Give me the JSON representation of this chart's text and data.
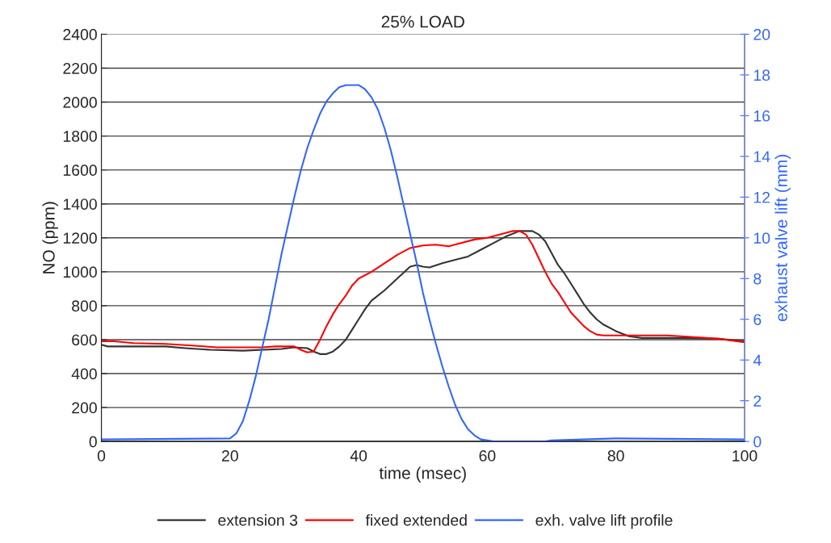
{
  "chart_data": {
    "type": "line",
    "title": "25% LOAD",
    "xlabel": "time (msec)",
    "ylabel": "NO (ppm)",
    "y2label": "exhaust valve lift (mm)",
    "xlim": [
      0,
      100
    ],
    "xticks": [
      0,
      20,
      40,
      60,
      80,
      100
    ],
    "ylim": [
      0,
      2400
    ],
    "yticks": [
      0,
      200,
      400,
      600,
      800,
      1000,
      1200,
      1400,
      1600,
      1800,
      2000,
      2200,
      2400
    ],
    "y2lim": [
      0,
      20
    ],
    "y2ticks": [
      0,
      2,
      4,
      6,
      8,
      10,
      12,
      14,
      16,
      18,
      20
    ],
    "grid": "y",
    "legend": "bottom",
    "marker": "none",
    "line_style": "solid",
    "series": [
      {
        "name": "extension 3",
        "color": "#333333",
        "x": [
          0,
          1,
          10,
          13,
          17,
          22,
          28,
          30,
          32,
          33,
          34,
          35,
          36,
          37,
          38,
          39,
          40,
          41,
          42,
          44,
          46,
          48,
          49,
          50,
          51,
          53,
          55,
          57,
          59,
          61,
          63,
          65,
          67,
          68,
          69,
          70,
          71,
          72,
          73,
          74,
          75,
          76,
          77,
          78,
          80,
          82,
          84,
          90,
          96,
          100
        ],
        "values": [
          570,
          560,
          560,
          550,
          540,
          535,
          545,
          555,
          550,
          530,
          515,
          515,
          530,
          560,
          600,
          660,
          720,
          780,
          830,
          890,
          960,
          1030,
          1040,
          1030,
          1025,
          1050,
          1070,
          1090,
          1130,
          1170,
          1210,
          1240,
          1240,
          1220,
          1180,
          1110,
          1040,
          990,
          930,
          870,
          810,
          760,
          720,
          690,
          650,
          620,
          610,
          610,
          605,
          590
        ]
      },
      {
        "name": "fixed extended",
        "color": "#ff0000",
        "x": [
          0,
          2,
          5,
          10,
          14,
          18,
          25,
          27,
          30,
          31,
          32,
          33,
          34,
          35,
          36,
          37,
          38,
          39,
          40,
          42,
          44,
          46,
          48,
          50,
          52,
          54,
          56,
          58,
          60,
          62,
          64,
          65,
          66,
          67,
          68,
          69,
          70,
          71,
          72,
          73,
          74,
          75,
          76,
          77,
          78,
          80,
          88,
          90,
          96,
          100
        ],
        "values": [
          590,
          590,
          580,
          575,
          565,
          555,
          555,
          560,
          560,
          540,
          525,
          530,
          600,
          680,
          750,
          810,
          860,
          920,
          960,
          1000,
          1050,
          1100,
          1140,
          1155,
          1160,
          1150,
          1170,
          1190,
          1200,
          1220,
          1240,
          1240,
          1220,
          1160,
          1080,
          1000,
          930,
          880,
          820,
          760,
          720,
          680,
          650,
          630,
          625,
          625,
          625,
          620,
          605,
          585
        ]
      },
      {
        "name": "exh. valve lift profile",
        "color": "#3366ff",
        "axis": "y2",
        "x": [
          0,
          20,
          21,
          22,
          23,
          24,
          25,
          26,
          27,
          28,
          29,
          30,
          31,
          32,
          33,
          34,
          35,
          36,
          37,
          38,
          40,
          41,
          42,
          43,
          44,
          45,
          46,
          47,
          48,
          49,
          50,
          51,
          52,
          53,
          54,
          55,
          56,
          57,
          58,
          59,
          61,
          69,
          70,
          80,
          100
        ],
        "values": [
          0.1,
          0.15,
          0.4,
          1,
          2,
          3.2,
          4.6,
          6.0,
          7.6,
          9.2,
          10.6,
          12,
          13.3,
          14.4,
          15.3,
          16.1,
          16.7,
          17.1,
          17.4,
          17.5,
          17.5,
          17.3,
          16.9,
          16.3,
          15.4,
          14.3,
          13.0,
          11.6,
          10.2,
          8.8,
          7.3,
          6.0,
          4.8,
          3.7,
          2.7,
          1.8,
          1.1,
          0.6,
          0.3,
          0.1,
          0.0,
          0.0,
          0.05,
          0.15,
          0.1
        ]
      }
    ]
  }
}
